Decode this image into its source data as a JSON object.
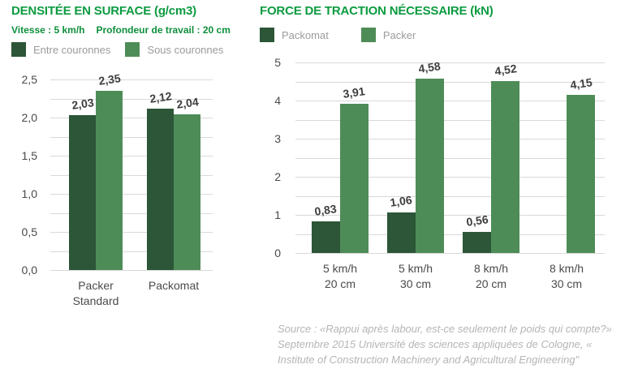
{
  "chart_data": [
    {
      "type": "bar",
      "title": "DENSITÉE EN SURFACE (g/cm3)",
      "subtitle": [
        "Vitesse : 5 km/h",
        "Profondeur de travail : 20 cm"
      ],
      "categories": [
        [
          "Packer",
          "Standard"
        ],
        [
          "Packomat"
        ]
      ],
      "series": [
        {
          "name": "Entre couronnes",
          "color": "#2c5637",
          "values": [
            2.03,
            2.12
          ],
          "labels": [
            "2,03",
            "2,12"
          ]
        },
        {
          "name": "Sous couronnes",
          "color": "#4e8c57",
          "values": [
            2.35,
            2.04
          ],
          "labels": [
            "2,35",
            "2,04"
          ]
        }
      ],
      "ylim": [
        0,
        2.5
      ],
      "ytick_labels": [
        "0,0",
        "0,5",
        "1,0",
        "1,5",
        "2,0",
        "2,5"
      ],
      "ytick_step": 0.5,
      "minor_step": 0.25,
      "grid": true,
      "legend_position": "top"
    },
    {
      "type": "bar",
      "title": "FORCE DE TRACTION NÉCESSAIRE (kN)",
      "subtitle": [],
      "categories": [
        [
          "5 km/h",
          "20 cm"
        ],
        [
          "5 km/h",
          "30 cm"
        ],
        [
          "8 km/h",
          "20 cm"
        ],
        [
          "8 km/h",
          "30 cm"
        ]
      ],
      "series": [
        {
          "name": "Packomat",
          "color": "#2c5637",
          "values": [
            0.83,
            1.06,
            0.56,
            null
          ],
          "labels": [
            "0,83",
            "1,06",
            "0,56",
            null
          ]
        },
        {
          "name": "Packer",
          "color": "#4e8c57",
          "values": [
            3.91,
            4.58,
            4.52,
            4.15
          ],
          "labels": [
            "3,91",
            "4,58",
            "4,52",
            "4,15"
          ]
        }
      ],
      "ylim": [
        0,
        5
      ],
      "ytick_labels": [
        "0",
        "1",
        "2",
        "3",
        "4",
        "5"
      ],
      "ytick_step": 1,
      "minor_step": 0.5,
      "grid": true,
      "legend_position": "top"
    }
  ],
  "source": {
    "lines": [
      "Source : «Rappui après labour, est-ce seulement le poids qui compte?»",
      "Septembre 2015 Université des sciences appliquées de Cologne, «",
      "Institute of Construction Machinery and Agricultural Engineering\""
    ]
  },
  "colors": {
    "title_green": "#0c9b40",
    "subtitle_green": "#0e8f3c",
    "dark_green": "#2c5637",
    "light_green": "#4e8c57",
    "legend_text": "#9b9b9b",
    "axis_text": "#4a4a4a",
    "value_text": "#3d3d3d",
    "gridline": "#d9d9d9",
    "source_text": "#b5b5b5"
  }
}
